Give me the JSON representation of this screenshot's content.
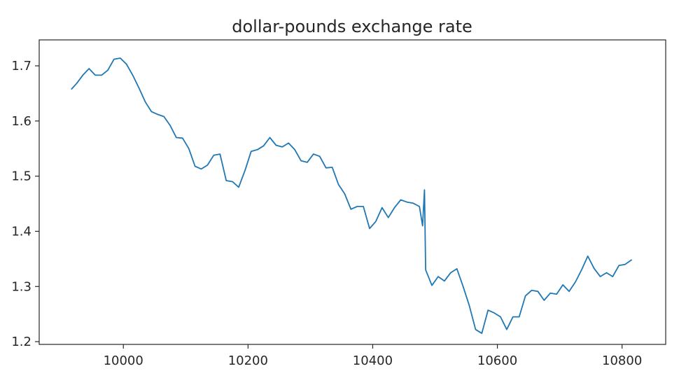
{
  "chart_data": {
    "type": "line",
    "title": "dollar-pounds exchange rate",
    "xlabel": "",
    "ylabel": "",
    "xlim": [
      9865,
      10870
    ],
    "ylim": [
      1.195,
      1.747
    ],
    "x_ticks": [
      10000,
      10200,
      10400,
      10600,
      10800
    ],
    "y_ticks": [
      1.2,
      1.3,
      1.4,
      1.5,
      1.6,
      1.7
    ],
    "x_tick_labels": [
      "10000",
      "10200",
      "10400",
      "10600",
      "10800"
    ],
    "y_tick_labels": [
      "1.2",
      "1.3",
      "1.4",
      "1.5",
      "1.6",
      "1.7"
    ],
    "grid": false,
    "legend": "none",
    "colors": {
      "line": "#1f77b4"
    },
    "series": [
      {
        "points": [
          [
            9917,
            1.658
          ],
          [
            9925,
            1.668
          ],
          [
            9935,
            1.683
          ],
          [
            9945,
            1.695
          ],
          [
            9955,
            1.683
          ],
          [
            9965,
            1.683
          ],
          [
            9975,
            1.692
          ],
          [
            9985,
            1.712
          ],
          [
            9995,
            1.714
          ],
          [
            10005,
            1.703
          ],
          [
            10015,
            1.683
          ],
          [
            10025,
            1.66
          ],
          [
            10035,
            1.635
          ],
          [
            10045,
            1.617
          ],
          [
            10055,
            1.612
          ],
          [
            10065,
            1.608
          ],
          [
            10075,
            1.592
          ],
          [
            10085,
            1.57
          ],
          [
            10095,
            1.569
          ],
          [
            10105,
            1.55
          ],
          [
            10115,
            1.518
          ],
          [
            10125,
            1.513
          ],
          [
            10135,
            1.52
          ],
          [
            10145,
            1.538
          ],
          [
            10155,
            1.54
          ],
          [
            10165,
            1.492
          ],
          [
            10175,
            1.49
          ],
          [
            10185,
            1.48
          ],
          [
            10195,
            1.51
          ],
          [
            10205,
            1.545
          ],
          [
            10215,
            1.548
          ],
          [
            10225,
            1.555
          ],
          [
            10235,
            1.57
          ],
          [
            10245,
            1.556
          ],
          [
            10255,
            1.553
          ],
          [
            10265,
            1.56
          ],
          [
            10275,
            1.548
          ],
          [
            10285,
            1.528
          ],
          [
            10295,
            1.525
          ],
          [
            10305,
            1.54
          ],
          [
            10315,
            1.536
          ],
          [
            10325,
            1.515
          ],
          [
            10335,
            1.516
          ],
          [
            10345,
            1.485
          ],
          [
            10355,
            1.468
          ],
          [
            10365,
            1.44
          ],
          [
            10375,
            1.445
          ],
          [
            10385,
            1.445
          ],
          [
            10395,
            1.405
          ],
          [
            10405,
            1.418
          ],
          [
            10415,
            1.443
          ],
          [
            10425,
            1.425
          ],
          [
            10435,
            1.443
          ],
          [
            10445,
            1.457
          ],
          [
            10455,
            1.453
          ],
          [
            10465,
            1.451
          ],
          [
            10475,
            1.445
          ],
          [
            10480,
            1.41
          ],
          [
            10483,
            1.475
          ],
          [
            10485,
            1.33
          ],
          [
            10495,
            1.302
          ],
          [
            10505,
            1.318
          ],
          [
            10515,
            1.31
          ],
          [
            10525,
            1.325
          ],
          [
            10535,
            1.332
          ],
          [
            10545,
            1.3
          ],
          [
            10555,
            1.265
          ],
          [
            10565,
            1.222
          ],
          [
            10575,
            1.215
          ],
          [
            10585,
            1.257
          ],
          [
            10595,
            1.252
          ],
          [
            10605,
            1.245
          ],
          [
            10615,
            1.222
          ],
          [
            10625,
            1.245
          ],
          [
            10635,
            1.245
          ],
          [
            10645,
            1.283
          ],
          [
            10655,
            1.293
          ],
          [
            10665,
            1.291
          ],
          [
            10675,
            1.275
          ],
          [
            10685,
            1.288
          ],
          [
            10695,
            1.286
          ],
          [
            10705,
            1.303
          ],
          [
            10715,
            1.291
          ],
          [
            10725,
            1.308
          ],
          [
            10735,
            1.33
          ],
          [
            10745,
            1.355
          ],
          [
            10755,
            1.333
          ],
          [
            10765,
            1.318
          ],
          [
            10775,
            1.325
          ],
          [
            10785,
            1.318
          ],
          [
            10795,
            1.338
          ],
          [
            10805,
            1.34
          ],
          [
            10815,
            1.348
          ]
        ]
      }
    ]
  }
}
